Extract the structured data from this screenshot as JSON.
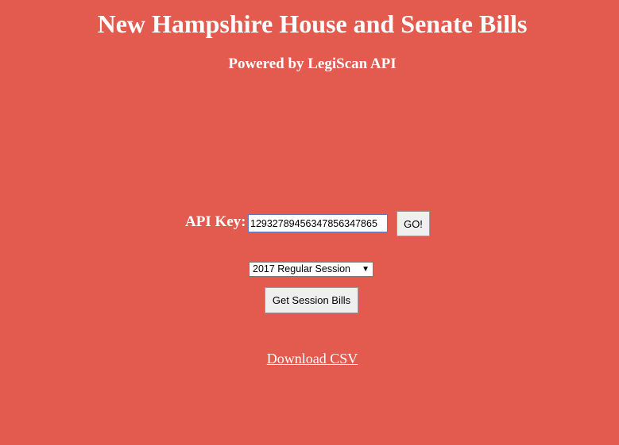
{
  "header": {
    "title": "New Hampshire House and Senate Bills",
    "subtitle": "Powered by LegiScan API"
  },
  "api": {
    "label": "API Key:",
    "value": "12932789456347856347865",
    "go_label": "GO!"
  },
  "session": {
    "selected": "2017 Regular Session",
    "button_label": "Get Session Bills"
  },
  "download": {
    "label": "Download CSV"
  },
  "colors": {
    "background": "#e25b4e",
    "text": "#ffffff"
  }
}
